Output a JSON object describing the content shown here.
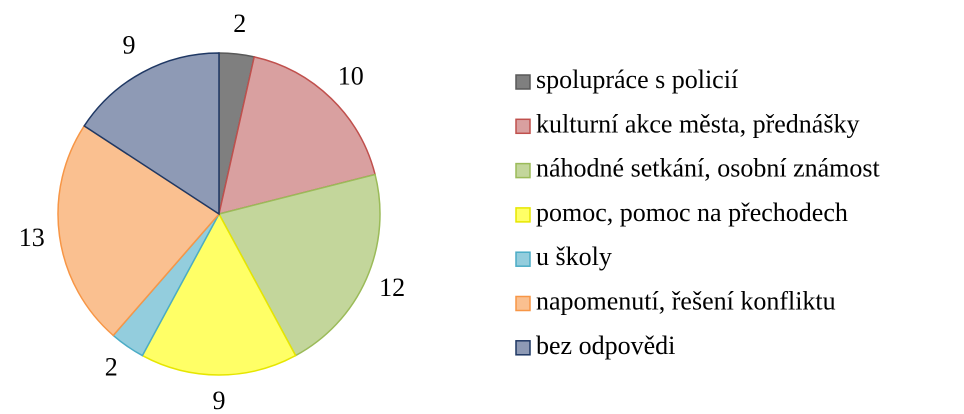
{
  "chart_data": {
    "type": "pie",
    "categories": [
      "spolupráce s policií",
      "kulturní akce města, přednášky",
      "náhodné setkání, osobní známost",
      "pomoc, pomoc na přechodech",
      "u školy",
      "napomenutí, řešení konfliktu",
      "bez odpovědi"
    ],
    "values": [
      2,
      10,
      12,
      9,
      2,
      13,
      9
    ],
    "colors": [
      "#7f7f7f",
      "#d9a0a0",
      "#c3d69b",
      "#ffff66",
      "#93cddd",
      "#fac090",
      "#8e9ab5"
    ],
    "edge_colors": [
      "#595959",
      "#c0504d",
      "#9bbb59",
      "#e6e600",
      "#4bacc6",
      "#f79646",
      "#1f3864"
    ],
    "legend": "right"
  }
}
